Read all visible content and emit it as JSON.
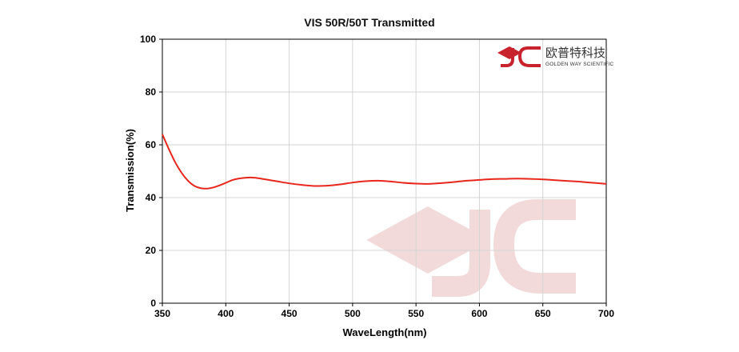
{
  "chart_data": {
    "type": "line",
    "title": "VIS 50R/50T Transmitted",
    "xlabel": "WaveLength(nm)",
    "ylabel": "Transmission(%)",
    "xlim": [
      350,
      700
    ],
    "ylim": [
      0,
      100
    ],
    "xticks": [
      350,
      400,
      450,
      500,
      550,
      600,
      650,
      700
    ],
    "yticks": [
      0,
      20,
      40,
      60,
      80,
      100
    ],
    "grid": true,
    "series": [
      {
        "color": "#e8261c",
        "x": [
          350,
          355,
          360,
          365,
          370,
          375,
          380,
          385,
          390,
          395,
          400,
          405,
          410,
          415,
          420,
          425,
          430,
          440,
          450,
          460,
          470,
          480,
          490,
          500,
          510,
          520,
          530,
          540,
          550,
          560,
          570,
          580,
          590,
          600,
          610,
          620,
          630,
          640,
          650,
          660,
          670,
          680,
          690,
          700
        ],
        "y": [
          64.0,
          58.5,
          53.5,
          49.5,
          46.5,
          44.5,
          43.6,
          43.4,
          43.8,
          44.6,
          45.6,
          46.6,
          47.2,
          47.5,
          47.6,
          47.4,
          47.0,
          46.2,
          45.4,
          44.8,
          44.4,
          44.5,
          45.0,
          45.7,
          46.2,
          46.4,
          46.1,
          45.6,
          45.3,
          45.2,
          45.5,
          45.9,
          46.4,
          46.7,
          47.0,
          47.1,
          47.2,
          47.1,
          46.9,
          46.6,
          46.3,
          46.0,
          45.6,
          45.2
        ]
      }
    ]
  },
  "logo": {
    "name_cn": "欧普特科技",
    "name_en": "GOLDEN WAY SCIENTIFIC",
    "brand_color": "#c8232c"
  },
  "watermark": {
    "color": "#f3dada"
  }
}
